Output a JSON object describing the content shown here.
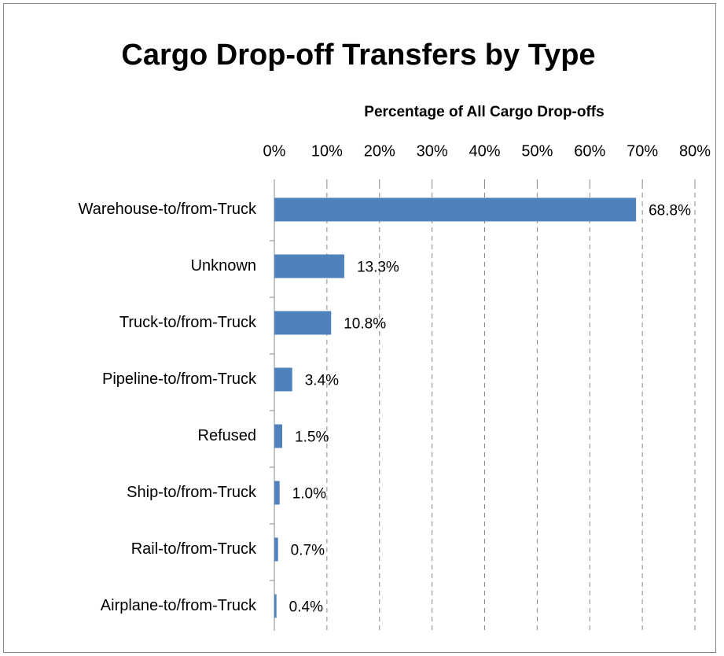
{
  "chart_data": {
    "type": "bar",
    "orientation": "horizontal",
    "title": "Cargo Drop-off Transfers by Type",
    "x_label": "Percentage of All Cargo Drop-offs",
    "categories": [
      "Warehouse-to/from-Truck",
      "Unknown",
      "Truck-to/from-Truck",
      "Pipeline-to/from-Truck",
      "Refused",
      "Ship-to/from-Truck",
      "Rail-to/from-Truck",
      "Airplane-to/from-Truck"
    ],
    "values": [
      68.8,
      13.3,
      10.8,
      3.4,
      1.5,
      1.0,
      0.7,
      0.4
    ],
    "value_labels": [
      "68.8%",
      "13.3%",
      "10.8%",
      "3.4%",
      "1.5%",
      "1.0%",
      "0.7%",
      "0.4%"
    ],
    "color": "#4f81bd",
    "xlim": [
      0,
      80
    ],
    "xticks": [
      {
        "value": 0,
        "label": "0%"
      },
      {
        "value": 10,
        "label": "10%"
      },
      {
        "value": 20,
        "label": "20%"
      },
      {
        "value": 30,
        "label": "30%"
      },
      {
        "value": 40,
        "label": "40%"
      },
      {
        "value": 50,
        "label": "50%"
      },
      {
        "value": 60,
        "label": "60%"
      },
      {
        "value": 70,
        "label": "70%"
      },
      {
        "value": 80,
        "label": "80%"
      }
    ],
    "grid": true
  }
}
